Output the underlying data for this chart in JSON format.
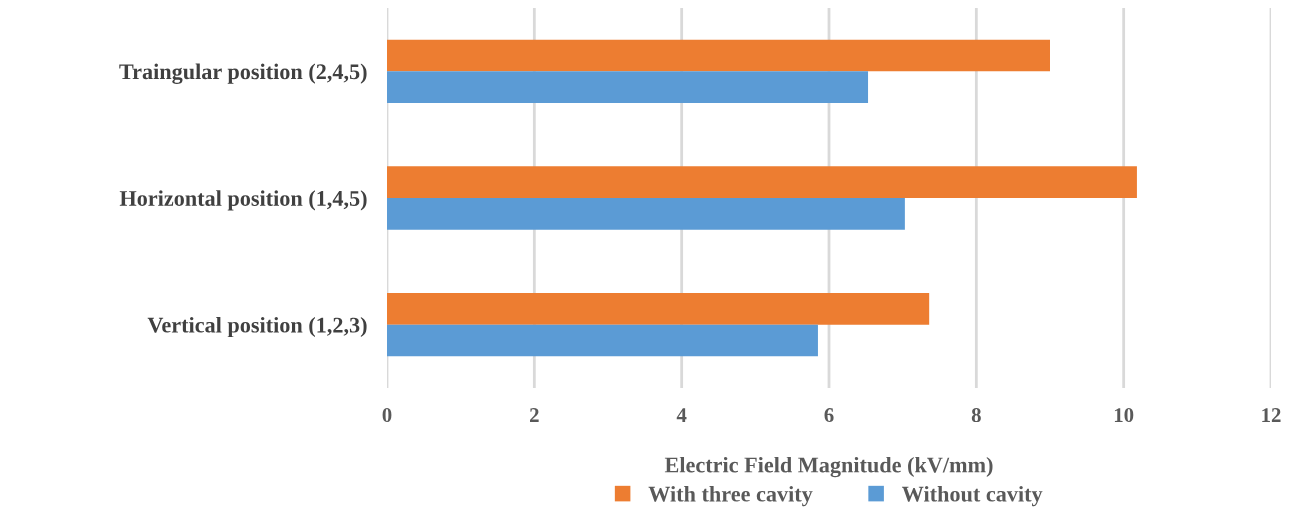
{
  "chart_data": {
    "type": "bar",
    "orientation": "horizontal",
    "categories": [
      "Traingular position (2,4,5)",
      "Horizontal position (1,4,5)",
      "Vertical position (1,2,3)"
    ],
    "series": [
      {
        "name": "With three cavity",
        "color": "#ed7d31",
        "values": [
          9.0,
          10.18,
          7.36
        ]
      },
      {
        "name": "Without cavity",
        "color": "#5b9bd5",
        "values": [
          6.53,
          7.03,
          5.85
        ]
      }
    ],
    "xlabel": "Electric Field Magnitude (kV/mm)",
    "xlim": [
      0,
      12
    ],
    "xticks": [
      0,
      2,
      4,
      6,
      8,
      10,
      12
    ],
    "grid": "x",
    "legend": "bottom"
  }
}
